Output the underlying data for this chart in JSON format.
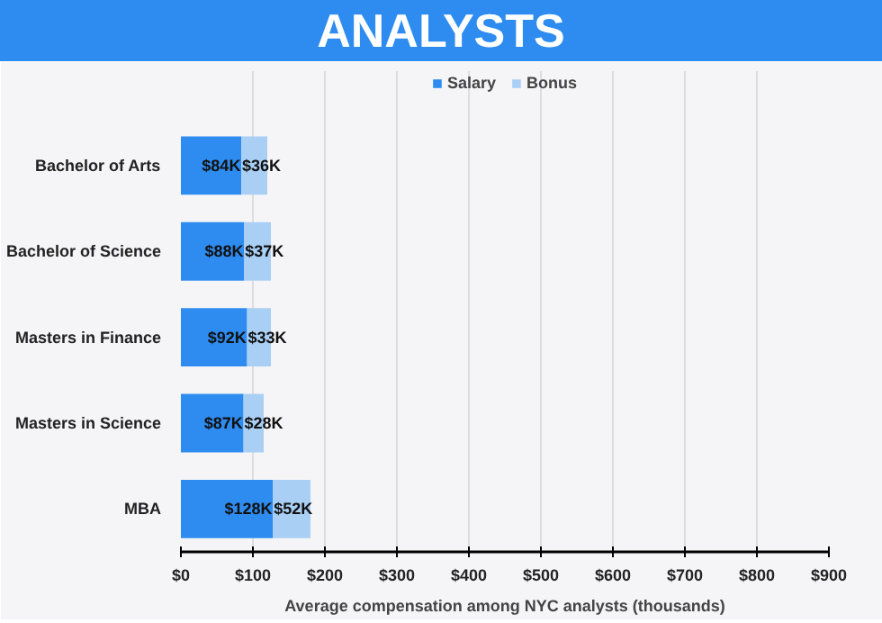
{
  "chart_data": {
    "type": "bar",
    "orientation": "horizontal",
    "stacked": true,
    "title": "ANALYSTS",
    "xlabel": "Average compensation among NYC analysts (thousands)",
    "categories": [
      "Bachelor of Arts",
      "Bachelor of Science",
      "Masters in Finance",
      "Masters in Science",
      "MBA"
    ],
    "series": [
      {
        "name": "Salary",
        "color": "#2e8cf0",
        "values": [
          84,
          88,
          92,
          87,
          128
        ],
        "value_labels": [
          "$84K",
          "$88K",
          "$92K",
          "$87K",
          "$128K"
        ]
      },
      {
        "name": "Bonus",
        "color": "#a9cff5",
        "values": [
          36,
          37,
          33,
          28,
          52
        ],
        "value_labels": [
          "$36K",
          "$37K",
          "$33K",
          "$28K",
          "$52K"
        ]
      }
    ],
    "xlim": [
      0,
      900
    ],
    "xticks": [
      {
        "value": 0,
        "label": "$0"
      },
      {
        "value": 100,
        "label": "$100"
      },
      {
        "value": 200,
        "label": "$200"
      },
      {
        "value": 300,
        "label": "$300"
      },
      {
        "value": 400,
        "label": "$400"
      },
      {
        "value": 500,
        "label": "$500"
      },
      {
        "value": 600,
        "label": "$600"
      },
      {
        "value": 700,
        "label": "$700"
      },
      {
        "value": 800,
        "label": "$800"
      },
      {
        "value": 900,
        "label": "$900"
      }
    ],
    "grid": "x",
    "legend": "top"
  }
}
